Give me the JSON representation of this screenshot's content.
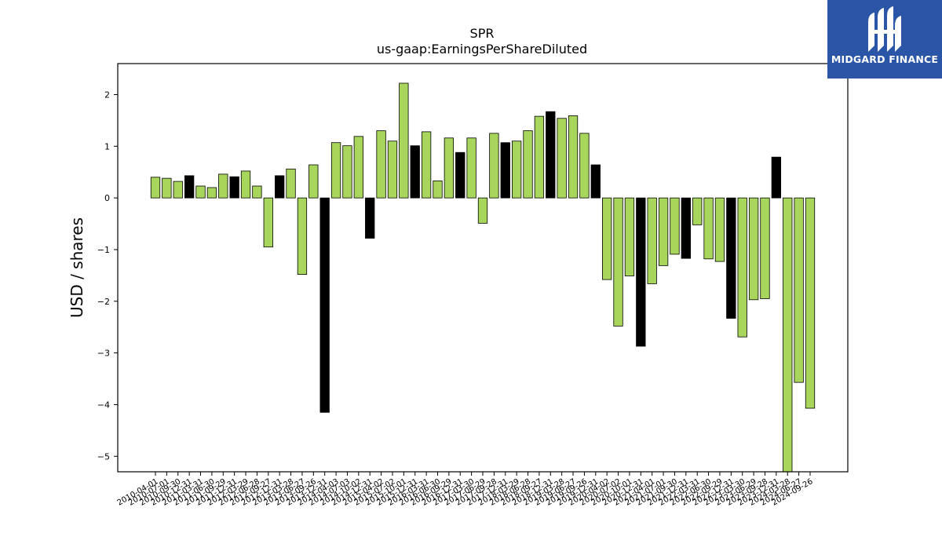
{
  "chart_data": {
    "type": "bar",
    "title": "SPR",
    "subtitle": "us-gaap:EarningsPerShareDiluted",
    "xlabel": "",
    "ylabel": "USD / shares",
    "ylim": [
      -5.3,
      2.6
    ],
    "yticks": [
      2,
      1,
      0,
      -1,
      -2,
      -3,
      -4,
      -5
    ],
    "ytick_labels": [
      "2",
      "1",
      "0",
      "−1",
      "−2",
      "−3",
      "−4",
      "−5"
    ],
    "categories": [
      "2010-04-01",
      "2010-07-01",
      "2010-09-30",
      "2010-12-31",
      "2011-03-31",
      "2011-06-30",
      "2011-09-29",
      "2011-12-31",
      "2012-03-29",
      "2012-06-28",
      "2012-09-27",
      "2012-12-31",
      "2013-03-28",
      "2013-06-27",
      "2013-09-26",
      "2013-12-31",
      "2014-04-03",
      "2014-07-03",
      "2014-10-02",
      "2014-12-31",
      "2015-04-02",
      "2015-07-02",
      "2015-10-01",
      "2015-12-31",
      "2016-03-31",
      "2016-06-30",
      "2016-09-29",
      "2016-12-31",
      "2017-03-30",
      "2017-06-29",
      "2017-09-28",
      "2017-12-31",
      "2018-03-29",
      "2018-06-28",
      "2018-09-27",
      "2018-12-31",
      "2019-03-28",
      "2019-06-27",
      "2019-09-26",
      "2019-12-31",
      "2020-04-02",
      "2020-07-02",
      "2020-10-01",
      "2020-12-31",
      "2021-04-01",
      "2021-07-01",
      "2021-09-30",
      "2021-12-31",
      "2022-03-31",
      "2022-06-30",
      "2022-09-29",
      "2022-12-31",
      "2023-03-30",
      "2023-06-29",
      "2023-09-28",
      "2023-12-31",
      "2024-03-28",
      "2024-06-27",
      "2024-09-26"
    ],
    "xtick_labels": [
      "2010-04-01",
      "2010-07-01",
      "2010-09-30",
      "2010-12-31",
      "2011-03-31",
      "2011-06-30",
      "2011-09-29",
      "2011-12-31",
      "2012-03-29",
      "2012-06-28",
      "2012-09-27",
      "2012-12-31",
      "2013-03-28",
      "2013-06-27",
      "2013-09-26",
      "2013-12-31",
      "2014-04-03",
      "2014-07-03",
      "2014-10-02",
      "2014-12-31",
      "2015-04-02",
      "2015-07-02",
      "2015-10-01",
      "2015-12-31",
      "2016-03-31",
      "2016-06-30",
      "2016-09-29",
      "2016-12-31",
      "2017-03-30",
      "2017-06-29",
      "2017-09-28",
      "2017-12-31",
      "2018-03-29",
      "2018-06-28",
      "2018-09-27",
      "2018-12-31",
      "2019-03-28",
      "2019-06-27",
      "2019-09-26",
      "2019-12-31",
      "2020-04-02",
      "2020-07-02",
      "2020-10-01",
      "2020-12-31",
      "2021-04-01",
      "2021-07-01",
      "2021-09-30",
      "2021-12-31",
      "2022-03-31",
      "2022-06-30",
      "2022-09-29",
      "2022-12-31",
      "2023-03-30",
      "2023-06-29",
      "2023-09-28",
      "2023-12-31",
      "2024-03-28",
      "2024-06-27",
      "2024-09-26"
    ],
    "values": [
      0.4,
      0.38,
      0.32,
      0.43,
      0.23,
      0.2,
      0.46,
      0.41,
      0.52,
      0.23,
      -0.95,
      0.43,
      0.56,
      -1.48,
      0.64,
      -4.15,
      1.07,
      1.01,
      1.19,
      -0.78,
      1.3,
      1.1,
      2.22,
      1.01,
      1.28,
      0.33,
      1.16,
      0.88,
      1.16,
      -0.49,
      1.25,
      1.07,
      1.1,
      1.3,
      1.58,
      1.67,
      1.54,
      1.59,
      1.25,
      0.64,
      -1.58,
      -2.48,
      -1.51,
      -2.87,
      -1.66,
      -1.31,
      -1.09,
      -1.17,
      -0.52,
      -1.18,
      -1.23,
      -2.33,
      -2.69,
      -1.97,
      -1.95,
      0.79,
      -5.3,
      -3.57,
      -4.07
    ],
    "annual": [
      false,
      false,
      false,
      true,
      false,
      false,
      false,
      true,
      false,
      false,
      false,
      true,
      false,
      false,
      false,
      true,
      false,
      false,
      false,
      true,
      false,
      false,
      false,
      true,
      false,
      false,
      false,
      true,
      false,
      false,
      false,
      true,
      false,
      false,
      false,
      true,
      false,
      false,
      false,
      true,
      false,
      false,
      false,
      true,
      false,
      false,
      false,
      true,
      false,
      false,
      false,
      true,
      false,
      false,
      false,
      true,
      false,
      false,
      false
    ],
    "colors": {
      "quarterly": "#a8d65c",
      "annual": "#000000",
      "edge": "#000000"
    },
    "grid": false
  },
  "logo": {
    "text": "MIDGARD FINANCE",
    "background": "#2b56a8"
  }
}
